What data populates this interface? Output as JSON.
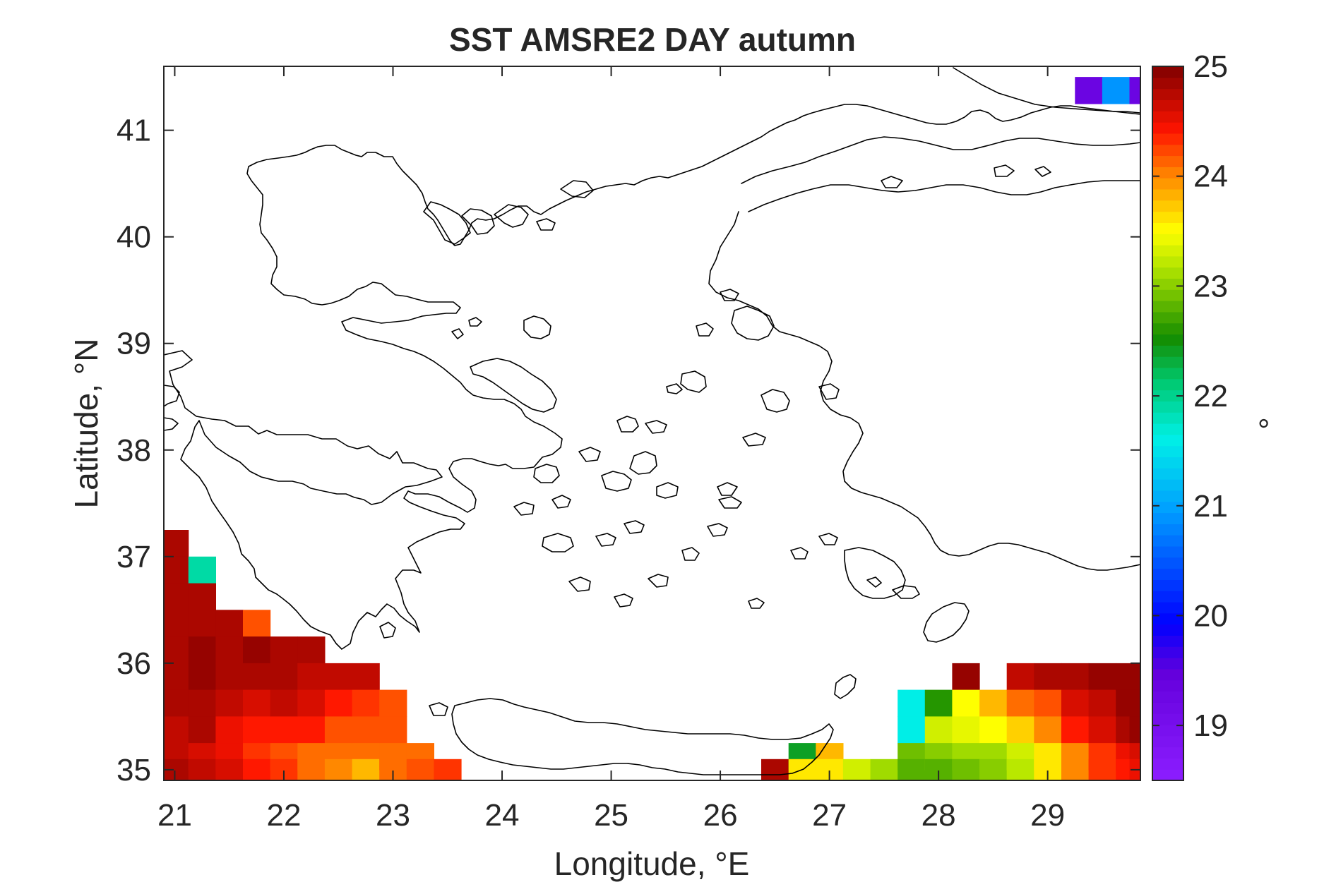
{
  "chart_data": {
    "type": "heatmap",
    "title": "SST AMSRE2 DAY autumn",
    "xlabel": "Longitude, °E",
    "ylabel": "Latitude, °N",
    "xlim": [
      20.9,
      29.85
    ],
    "ylim": [
      34.9,
      41.6
    ],
    "xticks": [
      "21",
      "22",
      "23",
      "24",
      "25",
      "26",
      "27",
      "28",
      "29"
    ],
    "yticks": [
      "35",
      "36",
      "37",
      "38",
      "39",
      "40",
      "41"
    ],
    "grid": false,
    "cell_size": [
      0.25,
      0.25
    ],
    "colorbar": {
      "label": "°",
      "range": [
        18.5,
        25
      ],
      "ticks": [
        "19",
        "20",
        "21",
        "22",
        "23",
        "24",
        "25"
      ],
      "colormap": "jet"
    },
    "cells": [
      [
        29.375,
        41.375,
        19.3
      ],
      [
        29.625,
        41.375,
        20.9
      ],
      [
        29.875,
        41.375,
        19.3
      ],
      [
        21.0,
        37.125,
        24.8
      ],
      [
        21.0,
        36.875,
        24.8
      ],
      [
        21.0,
        36.625,
        24.8
      ],
      [
        21.0,
        36.375,
        24.8
      ],
      [
        21.0,
        36.125,
        24.8
      ],
      [
        21.0,
        35.875,
        24.8
      ],
      [
        21.0,
        35.625,
        24.8
      ],
      [
        21.0,
        35.375,
        24.7
      ],
      [
        21.0,
        35.125,
        24.7
      ],
      [
        21.0,
        34.975,
        24.8
      ],
      [
        21.25,
        36.875,
        21.9
      ],
      [
        21.25,
        36.625,
        24.8
      ],
      [
        21.25,
        36.375,
        24.8
      ],
      [
        21.25,
        36.125,
        24.9
      ],
      [
        21.25,
        35.875,
        24.9
      ],
      [
        21.25,
        35.625,
        24.8
      ],
      [
        21.25,
        35.375,
        24.8
      ],
      [
        21.25,
        35.125,
        24.6
      ],
      [
        21.25,
        34.975,
        24.7
      ],
      [
        21.5,
        36.375,
        24.8
      ],
      [
        21.5,
        36.125,
        24.8
      ],
      [
        21.5,
        35.875,
        24.8
      ],
      [
        21.5,
        35.625,
        24.7
      ],
      [
        21.5,
        35.375,
        24.5
      ],
      [
        21.5,
        35.125,
        24.5
      ],
      [
        21.5,
        34.975,
        24.6
      ],
      [
        21.75,
        36.375,
        24.2
      ],
      [
        21.75,
        36.125,
        24.9
      ],
      [
        21.75,
        35.875,
        24.8
      ],
      [
        21.75,
        35.625,
        24.6
      ],
      [
        21.75,
        35.375,
        24.4
      ],
      [
        21.75,
        35.125,
        24.3
      ],
      [
        21.75,
        34.975,
        24.4
      ],
      [
        22.0,
        36.125,
        24.8
      ],
      [
        22.0,
        35.875,
        24.8
      ],
      [
        22.0,
        35.625,
        24.7
      ],
      [
        22.0,
        35.375,
        24.4
      ],
      [
        22.0,
        35.125,
        24.2
      ],
      [
        22.0,
        34.975,
        24.3
      ],
      [
        22.25,
        36.125,
        24.8
      ],
      [
        22.25,
        35.875,
        24.7
      ],
      [
        22.25,
        35.625,
        24.6
      ],
      [
        22.25,
        35.375,
        24.4
      ],
      [
        22.25,
        35.125,
        24.1
      ],
      [
        22.25,
        34.975,
        24.1
      ],
      [
        22.5,
        35.875,
        24.7
      ],
      [
        22.5,
        35.625,
        24.4
      ],
      [
        22.5,
        35.375,
        24.2
      ],
      [
        22.5,
        35.125,
        24.1
      ],
      [
        22.5,
        34.975,
        24.0
      ],
      [
        22.75,
        35.875,
        24.7
      ],
      [
        22.75,
        35.625,
        24.3
      ],
      [
        22.75,
        35.375,
        24.2
      ],
      [
        22.75,
        35.125,
        24.1
      ],
      [
        22.75,
        34.975,
        23.8
      ],
      [
        23.0,
        35.625,
        24.2
      ],
      [
        23.0,
        35.375,
        24.2
      ],
      [
        23.0,
        35.125,
        24.1
      ],
      [
        23.0,
        34.975,
        24.1
      ],
      [
        23.25,
        35.125,
        24.1
      ],
      [
        23.25,
        34.975,
        24.2
      ],
      [
        23.5,
        34.975,
        24.3
      ],
      [
        26.5,
        34.975,
        24.8
      ],
      [
        26.75,
        35.125,
        22.4
      ],
      [
        26.75,
        34.975,
        23.6
      ],
      [
        27.0,
        35.125,
        23.8
      ],
      [
        27.0,
        34.975,
        23.6
      ],
      [
        27.25,
        34.975,
        23.3
      ],
      [
        27.5,
        34.975,
        23.1
      ],
      [
        27.75,
        35.625,
        21.6
      ],
      [
        27.75,
        35.375,
        21.6
      ],
      [
        27.75,
        35.125,
        22.9
      ],
      [
        27.75,
        34.975,
        22.8
      ],
      [
        28.0,
        35.625,
        22.6
      ],
      [
        28.0,
        35.375,
        23.3
      ],
      [
        28.0,
        35.125,
        23.0
      ],
      [
        28.0,
        34.975,
        22.8
      ],
      [
        28.25,
        35.875,
        24.9
      ],
      [
        28.25,
        35.625,
        23.5
      ],
      [
        28.25,
        35.375,
        23.4
      ],
      [
        28.25,
        35.125,
        23.1
      ],
      [
        28.25,
        34.975,
        22.9
      ],
      [
        28.5,
        35.625,
        23.8
      ],
      [
        28.5,
        35.375,
        23.5
      ],
      [
        28.5,
        35.125,
        23.1
      ],
      [
        28.5,
        34.975,
        23.0
      ],
      [
        28.75,
        35.875,
        24.7
      ],
      [
        28.75,
        35.625,
        24.1
      ],
      [
        28.75,
        35.375,
        23.7
      ],
      [
        28.75,
        35.125,
        23.3
      ],
      [
        28.75,
        34.975,
        23.2
      ],
      [
        29.0,
        35.875,
        24.8
      ],
      [
        29.0,
        35.625,
        24.2
      ],
      [
        29.0,
        35.375,
        24.0
      ],
      [
        29.0,
        35.125,
        23.6
      ],
      [
        29.0,
        34.975,
        23.6
      ],
      [
        29.25,
        35.875,
        24.8
      ],
      [
        29.25,
        35.625,
        24.6
      ],
      [
        29.25,
        35.375,
        24.4
      ],
      [
        29.25,
        35.125,
        24.0
      ],
      [
        29.25,
        34.975,
        24.0
      ],
      [
        29.5,
        35.875,
        24.9
      ],
      [
        29.5,
        35.625,
        24.7
      ],
      [
        29.5,
        35.375,
        24.6
      ],
      [
        29.5,
        35.125,
        24.3
      ],
      [
        29.5,
        34.975,
        24.3
      ],
      [
        29.75,
        35.875,
        24.9
      ],
      [
        29.75,
        35.625,
        24.9
      ],
      [
        29.75,
        35.375,
        24.8
      ],
      [
        29.75,
        35.125,
        24.5
      ],
      [
        29.75,
        34.975,
        24.4
      ],
      [
        29.875,
        35.625,
        24.9
      ],
      [
        29.875,
        35.375,
        24.9
      ],
      [
        29.875,
        35.125,
        24.6
      ],
      [
        29.875,
        34.975,
        24.5
      ]
    ]
  }
}
